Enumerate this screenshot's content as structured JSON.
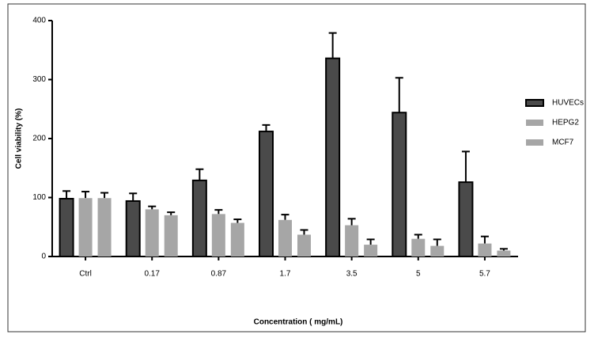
{
  "chart_data": {
    "type": "bar",
    "x_label": "Concentration ( mg/mL)",
    "y_label": "Cell viability (%)",
    "categories": [
      "Ctrl",
      "0.17",
      "0.87",
      "1.7",
      "3.5",
      "5",
      "5.7"
    ],
    "series": [
      {
        "name": "HUVECs",
        "color": "#4a4a4a",
        "values": [
          98,
          94,
          129,
          212,
          336,
          244,
          126
        ],
        "errors": [
          13,
          13,
          19,
          11,
          43,
          59,
          52
        ]
      },
      {
        "name": "HEPG2",
        "color": "#a6a6a6",
        "values": [
          99,
          80,
          72,
          62,
          53,
          30,
          22
        ],
        "errors": [
          11,
          5,
          7,
          9,
          11,
          7,
          12
        ]
      },
      {
        "name": "MCF7",
        "color": "#a6a6a6",
        "values": [
          99,
          70,
          57,
          37,
          20,
          18,
          10
        ],
        "errors": [
          9,
          5,
          6,
          8,
          9,
          11,
          3
        ]
      }
    ],
    "ylim": [
      0,
      400
    ],
    "yticks": [
      0,
      100,
      200,
      300,
      400
    ],
    "legend": "right"
  }
}
